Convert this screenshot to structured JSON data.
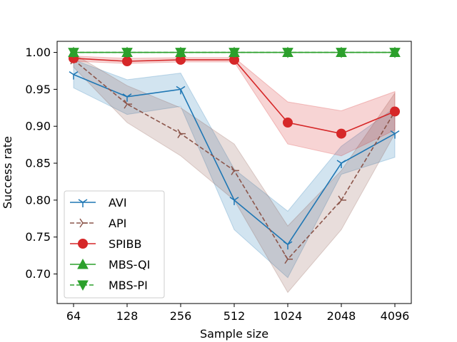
{
  "chart_data": {
    "type": "line",
    "title": "",
    "xlabel": "Sample size",
    "ylabel": "Success rate",
    "x_categories": [
      "64",
      "128",
      "256",
      "512",
      "1024",
      "2048",
      "4096"
    ],
    "ylim": [
      0.66,
      1.015
    ],
    "yticks": [
      "0.70",
      "0.75",
      "0.80",
      "0.85",
      "0.90",
      "0.95",
      "1.00"
    ],
    "legend_position": "lower-left",
    "series": [
      {
        "name": "AVI",
        "color": "#1f77b4",
        "dash": "solid",
        "marker": "tri_down",
        "values": [
          0.97,
          0.94,
          0.95,
          0.8,
          0.74,
          0.85,
          0.89
        ],
        "lower": [
          0.952,
          0.916,
          0.927,
          0.76,
          0.695,
          0.835,
          0.858
        ],
        "upper": [
          0.99,
          0.963,
          0.972,
          0.842,
          0.785,
          0.873,
          0.925
        ]
      },
      {
        "name": "API",
        "color": "#8c564b",
        "dash": "dashed",
        "marker": "tri_right",
        "values": [
          0.99,
          0.93,
          0.89,
          0.84,
          0.72,
          0.8,
          0.92
        ],
        "lower": [
          0.98,
          0.905,
          0.86,
          0.8,
          0.675,
          0.76,
          0.89
        ],
        "upper": [
          0.998,
          0.955,
          0.925,
          0.876,
          0.765,
          0.84,
          0.945
        ]
      },
      {
        "name": "SPIBB",
        "color": "#d62728",
        "dash": "solid",
        "marker": "circle",
        "values": [
          0.992,
          0.988,
          0.99,
          0.99,
          0.905,
          0.89,
          0.92
        ],
        "lower": [
          0.988,
          0.985,
          0.987,
          0.987,
          0.876,
          0.86,
          0.895
        ],
        "upper": [
          0.995,
          0.992,
          0.993,
          0.993,
          0.933,
          0.921,
          0.947
        ]
      },
      {
        "name": "MBS-QI",
        "color": "#2ca02c",
        "dash": "solid",
        "marker": "triangle_up",
        "values": [
          1.0,
          1.0,
          1.0,
          1.0,
          1.0,
          1.0,
          1.0
        ]
      },
      {
        "name": "MBS-PI",
        "color": "#2ca02c",
        "dash": "dashed",
        "marker": "triangle_down",
        "values": [
          1.0,
          1.0,
          1.0,
          1.0,
          1.0,
          1.0,
          1.0
        ]
      }
    ]
  }
}
